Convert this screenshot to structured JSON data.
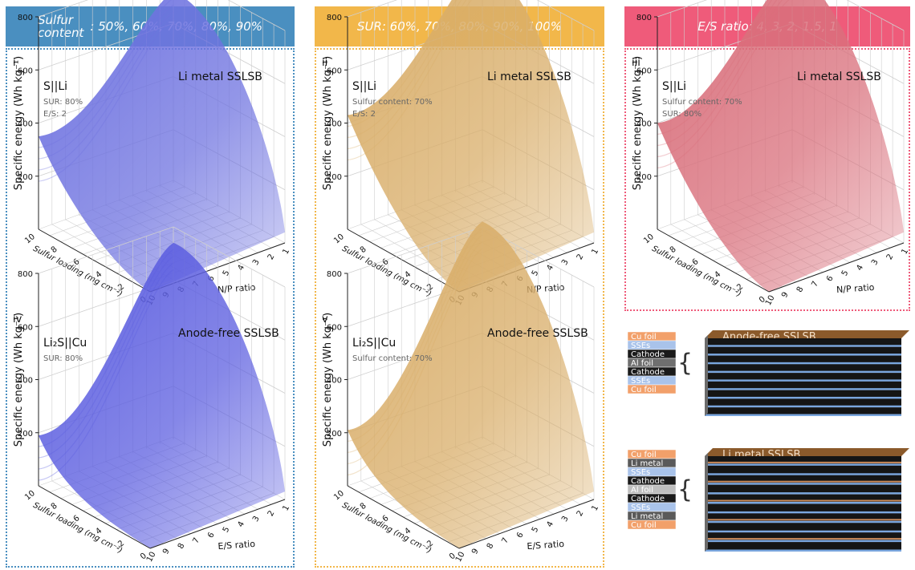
{
  "headers": [
    {
      "line1": "Sulfur",
      "line2": "content",
      "rest": ": 50%, 60%, 70%, 80%, 90%",
      "color": "#4a8fc0"
    },
    {
      "text": "SUR: 60%, 70%, 80%, 90%, 100%",
      "color": "#f2b74a"
    },
    {
      "text": "E/S ratio: 4, 3, 2, 1.5, 1",
      "color": "#ef5b7a"
    }
  ],
  "chart_data": [
    {
      "type": "surface",
      "panel": "i",
      "cell": "S||Li",
      "title": "Li metal SSLSB",
      "params": [
        "SUR: 80%",
        "E/S: 2"
      ],
      "zlabel": "Specific energy (Wh kg⁻¹)",
      "zticks": [
        "200",
        "400",
        "600",
        "800"
      ],
      "xlabel": "N/P ratio",
      "xticks": [
        "10",
        "9",
        "8",
        "7",
        "6",
        "5",
        "4",
        "3",
        "2",
        "1"
      ],
      "ylabel": "Sulfur loading (mg cm⁻²)",
      "yticks": [
        "0",
        "2",
        "4",
        "6",
        "8",
        "10"
      ],
      "color": "#6f73e0",
      "zrange": [
        0,
        800
      ],
      "left_value": 350,
      "peak_value": 720,
      "low_value": 40
    },
    {
      "type": "surface",
      "panel": "ii",
      "cell": "S||Li",
      "title": "Li metal SSLSB",
      "params": [
        "Sulfur content: 70%",
        "E/S: 2"
      ],
      "zlabel": "Specific energy (Wh kg⁻¹)",
      "zticks": [
        "200",
        "400",
        "600",
        "800"
      ],
      "xlabel": "N/P ratio",
      "xticks": [
        "10",
        "9",
        "8",
        "7",
        "6",
        "5",
        "4",
        "3",
        "2",
        "1"
      ],
      "ylabel": "Sulfur loading (mg cm⁻²)",
      "yticks": [
        "0",
        "2",
        "4",
        "6",
        "8",
        "10"
      ],
      "color": "#d9ae6a",
      "zrange": [
        0,
        800
      ],
      "left_value": 430,
      "peak_value": 830,
      "low_value": 40
    },
    {
      "type": "surface",
      "panel": "iii",
      "cell": "S||Li",
      "title": "Li metal SSLSB",
      "params": [
        "Sulfur content: 70%",
        "SUR: 80%"
      ],
      "zlabel": "Specific energy (Wh kg⁻¹)",
      "zticks": [
        "200",
        "400",
        "600",
        "800"
      ],
      "xlabel": "N/P ratio",
      "xticks": [
        "10",
        "9",
        "8",
        "7",
        "6",
        "5",
        "4",
        "3",
        "2",
        "1"
      ],
      "ylabel": "Sulfur loading (mg cm⁻²)",
      "yticks": [
        "0",
        "2",
        "4",
        "6",
        "8",
        "10"
      ],
      "color": "#d9707c",
      "zrange": [
        0,
        800
      ],
      "left_value": 400,
      "peak_value": 800,
      "low_value": 40
    },
    {
      "type": "surface",
      "panel": "iv",
      "cell": "Li₂S||Cu",
      "title": "Anode-free SSLSB",
      "params": [
        "SUR: 80%"
      ],
      "zlabel": "Specific energy (Wh kg⁻¹)",
      "zticks": [
        "200",
        "400",
        "600",
        "800"
      ],
      "xlabel": "E/S ratio",
      "xticks": [
        "10",
        "9",
        "8",
        "7",
        "6",
        "5",
        "4",
        "3",
        "2",
        "1"
      ],
      "ylabel": "Sulfur loading (mg cm⁻²)",
      "yticks": [
        "0",
        "2",
        "4",
        "6",
        "8",
        "10"
      ],
      "color": "#5d5fe0",
      "zrange": [
        0,
        800
      ],
      "left_value": 190,
      "peak_value": 740,
      "low_value": 30
    },
    {
      "type": "surface",
      "panel": "v",
      "cell": "Li₂S||Cu",
      "title": "Anode-free SSLSB",
      "params": [
        "Sulfur content: 70%"
      ],
      "zlabel": "Specific energy (Wh kg⁻¹)",
      "zticks": [
        "200",
        "400",
        "600",
        "800"
      ],
      "xlabel": "E/S ratio",
      "xticks": [
        "10",
        "9",
        "8",
        "7",
        "6",
        "5",
        "4",
        "3",
        "2",
        "1"
      ],
      "ylabel": "Sulfur loading (mg cm⁻²)",
      "yticks": [
        "0",
        "2",
        "4",
        "6",
        "8",
        "10"
      ],
      "color": "#d9ae6a",
      "zrange": [
        0,
        800
      ],
      "left_value": 210,
      "peak_value": 820,
      "low_value": 30
    }
  ],
  "stacks": [
    {
      "title": "Anode-free SSLSB",
      "layers": [
        {
          "label": "Cu foil",
          "color": "#f2a06a"
        },
        {
          "label": "SSEs",
          "color": "#a9c3ea"
        },
        {
          "label": "Cathode",
          "color": "#1a1a1a"
        },
        {
          "label": "Al foil",
          "color": "#6f6f6f"
        },
        {
          "label": "Cathode",
          "color": "#1a1a1a"
        },
        {
          "label": "SSEs",
          "color": "#a9c3ea"
        },
        {
          "label": "Cu foil",
          "color": "#f2a06a"
        }
      ]
    },
    {
      "title": "Li metal SSLSB",
      "layers": [
        {
          "label": "Cu foil",
          "color": "#f2a06a"
        },
        {
          "label": "Li metal",
          "color": "#5a5a5a"
        },
        {
          "label": "SSEs",
          "color": "#a9c3ea"
        },
        {
          "label": "Cathode",
          "color": "#1a1a1a"
        },
        {
          "label": "Al foil",
          "color": "#bfbfbf"
        },
        {
          "label": "Cathode",
          "color": "#1a1a1a"
        },
        {
          "label": "SSEs",
          "color": "#a9c3ea"
        },
        {
          "label": "Li metal",
          "color": "#5a5a5a"
        },
        {
          "label": "Cu foil",
          "color": "#f2a06a"
        }
      ]
    }
  ]
}
